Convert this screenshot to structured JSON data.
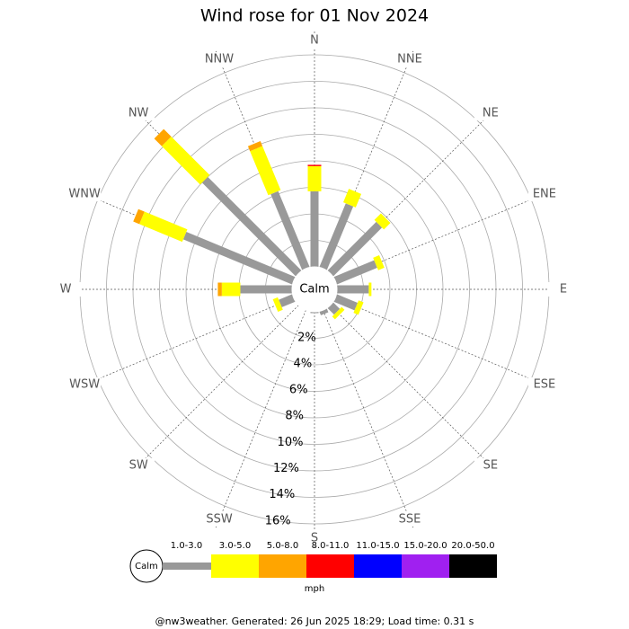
{
  "chart_data": {
    "type": "windrose",
    "title": "Wind rose for 01 Nov 2024",
    "center_label": "Calm",
    "unit_label": "mph",
    "footer": "@nw3weather. Generated: 26 Jun 2025 18:29; Load time: 0.31 s",
    "categories": [
      "N",
      "NNE",
      "NE",
      "ENE",
      "E",
      "ESE",
      "SE",
      "SSE",
      "S",
      "SSW",
      "SW",
      "WSW",
      "W",
      "WNW",
      "NW",
      "NNW"
    ],
    "rlim": [
      0,
      16
    ],
    "rticks": [
      {
        "value": 2,
        "label": "2%"
      },
      {
        "value": 4,
        "label": "4%"
      },
      {
        "value": 6,
        "label": "6%"
      },
      {
        "value": 8,
        "label": "8%"
      },
      {
        "value": 10,
        "label": "10%"
      },
      {
        "value": 12,
        "label": "12%"
      },
      {
        "value": 14,
        "label": "14%"
      },
      {
        "value": 16,
        "label": "16%"
      }
    ],
    "series": [
      {
        "name": "1.0-3.0",
        "color": "#999999",
        "values": [
          5.7,
          5.2,
          5.2,
          3.3,
          2.4,
          1.7,
          0.7,
          0.3,
          0.1,
          0,
          0,
          1.1,
          3.9,
          8.9,
          10.0,
          6.2
        ]
      },
      {
        "name": "3.0-5.0",
        "color": "#ffff00",
        "values": [
          1.9,
          1.1,
          0.7,
          0.5,
          0.2,
          0.4,
          0.3,
          0,
          0,
          0,
          0,
          0.4,
          1.4,
          3.5,
          4.1,
          3.6
        ]
      },
      {
        "name": "5.0-8.0",
        "color": "#ffa500",
        "values": [
          0,
          0,
          0,
          0,
          0,
          0,
          0,
          0,
          0,
          0,
          0,
          0,
          0.3,
          0.5,
          0.8,
          0.4
        ]
      },
      {
        "name": "8.0-11.0",
        "color": "#ff0000",
        "values": [
          0.1,
          0,
          0,
          0,
          0,
          0,
          0,
          0,
          0,
          0,
          0,
          0,
          0,
          0,
          0,
          0
        ]
      },
      {
        "name": "11.0-15.0",
        "color": "#0000ff",
        "values": [
          0,
          0,
          0,
          0,
          0,
          0,
          0,
          0,
          0,
          0,
          0,
          0,
          0,
          0,
          0,
          0
        ]
      },
      {
        "name": "15.0-20.0",
        "color": "#a020f0",
        "values": [
          0,
          0,
          0,
          0,
          0,
          0,
          0,
          0,
          0,
          0,
          0,
          0,
          0,
          0,
          0,
          0
        ]
      },
      {
        "name": "20.0-50.0",
        "color": "#000000",
        "values": [
          0,
          0,
          0,
          0,
          0,
          0,
          0,
          0,
          0,
          0,
          0,
          0,
          0,
          0,
          0,
          0
        ]
      }
    ]
  }
}
